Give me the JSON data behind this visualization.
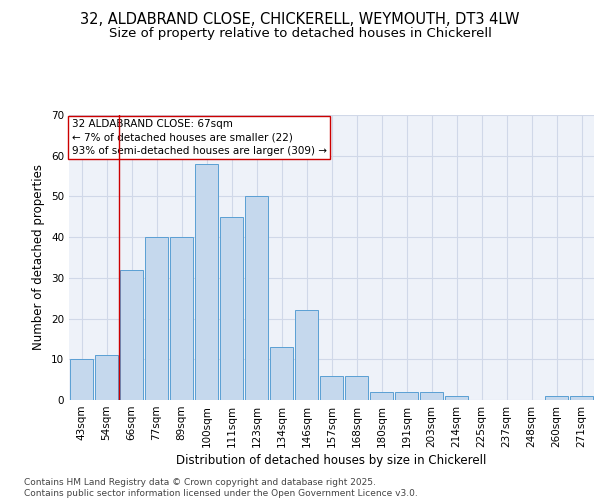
{
  "title_line1": "32, ALDABRAND CLOSE, CHICKERELL, WEYMOUTH, DT3 4LW",
  "title_line2": "Size of property relative to detached houses in Chickerell",
  "xlabel": "Distribution of detached houses by size in Chickerell",
  "ylabel": "Number of detached properties",
  "categories": [
    "43sqm",
    "54sqm",
    "66sqm",
    "77sqm",
    "89sqm",
    "100sqm",
    "111sqm",
    "123sqm",
    "134sqm",
    "146sqm",
    "157sqm",
    "168sqm",
    "180sqm",
    "191sqm",
    "203sqm",
    "214sqm",
    "225sqm",
    "237sqm",
    "248sqm",
    "260sqm",
    "271sqm"
  ],
  "values": [
    10,
    11,
    32,
    40,
    40,
    58,
    45,
    50,
    13,
    22,
    6,
    6,
    2,
    2,
    2,
    1,
    0,
    0,
    0,
    1,
    1
  ],
  "bar_color": "#c5d8ed",
  "bar_edge_color": "#5a9fd4",
  "annotation_text": "32 ALDABRAND CLOSE: 67sqm\n← 7% of detached houses are smaller (22)\n93% of semi-detached houses are larger (309) →",
  "annotation_box_color": "#ffffff",
  "annotation_box_edge_color": "#cc0000",
  "highlight_line_color": "#cc0000",
  "ylim": [
    0,
    70
  ],
  "yticks": [
    0,
    10,
    20,
    30,
    40,
    50,
    60,
    70
  ],
  "grid_color": "#d0d8e8",
  "footer_text": "Contains HM Land Registry data © Crown copyright and database right 2025.\nContains public sector information licensed under the Open Government Licence v3.0.",
  "title_fontsize": 10.5,
  "subtitle_fontsize": 9.5,
  "axis_label_fontsize": 8.5,
  "tick_fontsize": 7.5,
  "annotation_fontsize": 7.5,
  "footer_fontsize": 6.5,
  "bg_color": "#eef2f9"
}
